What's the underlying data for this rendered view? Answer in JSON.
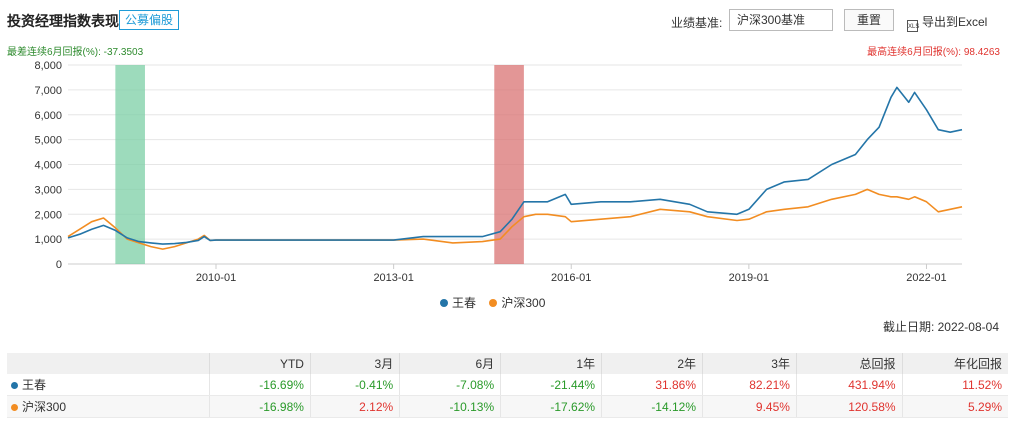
{
  "header": {
    "title": "投资经理指数表现",
    "badge": "公募偏股",
    "benchmark_label": "业绩基准:",
    "benchmark_value": "沪深300基准",
    "reset_label": "重置",
    "export_label": "导出到Excel"
  },
  "drawdown": {
    "worst_label": "最差连续6月回报(%): -37.3503",
    "best_label": "最高连续6月回报(%): 98.4263"
  },
  "colors": {
    "wangchun": "#2475a8",
    "hs300": "#f28d22",
    "worst_band": "#7ccfa5",
    "best_band": "#d97373"
  },
  "chart_data": {
    "type": "line",
    "x_unit": "date",
    "x_tick_labels": [
      "2010-01",
      "2013-01",
      "2016-01",
      "2019-01",
      "2022-01"
    ],
    "x_ticks": [
      2010.0,
      2013.0,
      2016.0,
      2019.0,
      2022.0
    ],
    "xlim": [
      2007.5,
      2022.6
    ],
    "ylim": [
      0,
      8000
    ],
    "y_ticks": [
      0,
      1000,
      2000,
      3000,
      4000,
      5000,
      6000,
      7000,
      8000
    ],
    "y_tick_labels": [
      "0",
      "1,000",
      "2,000",
      "3,000",
      "4,000",
      "5,000",
      "6,000",
      "7,000",
      "8,000"
    ],
    "grid": true,
    "legend_position": "bottom",
    "bands": [
      {
        "type": "worst",
        "x_range": [
          2008.3,
          2008.8
        ]
      },
      {
        "type": "best",
        "x_range": [
          2014.7,
          2015.2
        ]
      }
    ],
    "series": [
      {
        "name": "王春",
        "x": [
          2007.5,
          2007.7,
          2007.9,
          2008.1,
          2008.3,
          2008.5,
          2008.7,
          2008.9,
          2009.1,
          2009.3,
          2009.5,
          2009.7,
          2009.8,
          2009.9,
          2010.0,
          2011.0,
          2012.0,
          2013.0,
          2013.5,
          2014.0,
          2014.5,
          2014.8,
          2015.0,
          2015.2,
          2015.4,
          2015.6,
          2015.9,
          2016.0,
          2016.5,
          2017.0,
          2017.5,
          2018.0,
          2018.3,
          2018.8,
          2019.0,
          2019.3,
          2019.6,
          2020.0,
          2020.4,
          2020.8,
          2021.0,
          2021.2,
          2021.4,
          2021.5,
          2021.7,
          2021.8,
          2022.0,
          2022.2,
          2022.4,
          2022.6
        ],
        "y": [
          1050,
          1200,
          1400,
          1550,
          1350,
          1050,
          900,
          850,
          800,
          820,
          870,
          950,
          1100,
          950,
          960,
          960,
          960,
          960,
          1100,
          1100,
          1100,
          1300,
          1800,
          2500,
          2500,
          2500,
          2800,
          2400,
          2500,
          2500,
          2600,
          2400,
          2100,
          2000,
          2200,
          3000,
          3300,
          3400,
          4000,
          4400,
          5000,
          5500,
          6700,
          7100,
          6500,
          6900,
          6200,
          5400,
          5300,
          5400
        ]
      },
      {
        "name": "沪深300",
        "x": [
          2007.5,
          2007.7,
          2007.9,
          2008.1,
          2008.3,
          2008.5,
          2008.7,
          2008.9,
          2009.1,
          2009.3,
          2009.5,
          2009.7,
          2009.8,
          2009.9,
          2010.0,
          2011.0,
          2012.0,
          2013.0,
          2013.5,
          2014.0,
          2014.5,
          2014.8,
          2015.0,
          2015.2,
          2015.4,
          2015.6,
          2015.9,
          2016.0,
          2016.5,
          2017.0,
          2017.5,
          2018.0,
          2018.3,
          2018.8,
          2019.0,
          2019.3,
          2019.6,
          2020.0,
          2020.4,
          2020.8,
          2021.0,
          2021.2,
          2021.4,
          2021.5,
          2021.7,
          2021.8,
          2022.0,
          2022.2,
          2022.4,
          2022.6
        ],
        "y": [
          1100,
          1400,
          1700,
          1850,
          1450,
          1000,
          850,
          700,
          600,
          700,
          850,
          1000,
          1150,
          950,
          960,
          960,
          960,
          960,
          1000,
          850,
          900,
          1000,
          1500,
          1900,
          2000,
          2000,
          1900,
          1700,
          1800,
          1900,
          2200,
          2100,
          1900,
          1750,
          1800,
          2100,
          2200,
          2300,
          2600,
          2800,
          3000,
          2800,
          2700,
          2700,
          2600,
          2700,
          2500,
          2100,
          2200,
          2300
        ]
      }
    ]
  },
  "legend": [
    {
      "label": "王春",
      "color": "#2475a8"
    },
    {
      "label": "沪深300",
      "color": "#f28d22"
    }
  ],
  "cutoff_label": "截止日期: 2022-08-04",
  "table": {
    "headers": [
      "",
      "YTD",
      "3月",
      "6月",
      "1年",
      "2年",
      "3年",
      "总回报",
      "年化回报"
    ],
    "rows": [
      {
        "name": "王春",
        "color": "#2475a8",
        "values": [
          "-16.69%",
          "-0.41%",
          "-7.08%",
          "-21.44%",
          "31.86%",
          "82.21%",
          "431.94%",
          "11.52%"
        ]
      },
      {
        "name": "沪深300",
        "color": "#f28d22",
        "values": [
          "-16.98%",
          "2.12%",
          "-10.13%",
          "-17.62%",
          "-14.12%",
          "9.45%",
          "120.58%",
          "5.29%"
        ]
      }
    ]
  }
}
